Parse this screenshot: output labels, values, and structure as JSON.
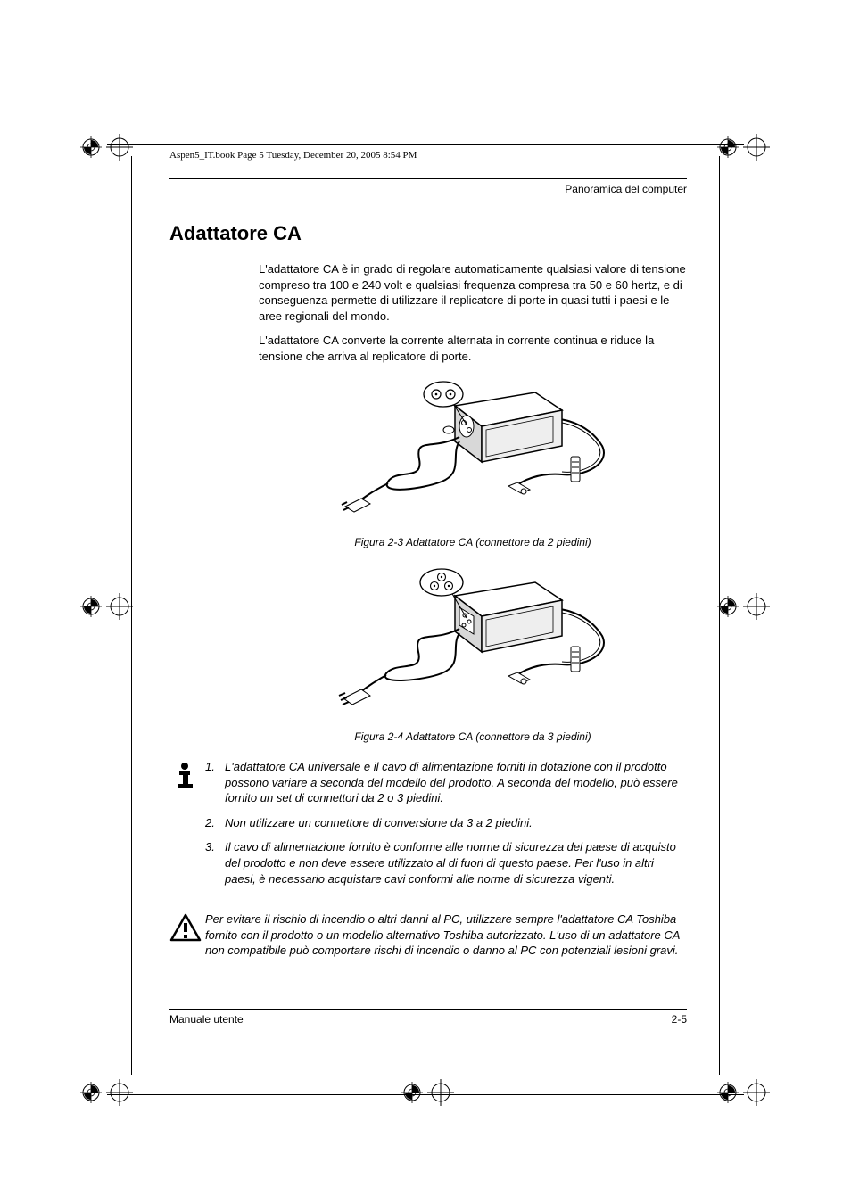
{
  "running_head": "Aspen5_IT.book  Page 5  Tuesday, December 20, 2005  8:54 PM",
  "section_header": "Panoramica del computer",
  "title": "Adattatore CA",
  "paragraphs": [
    "L'adattatore CA è in grado di regolare automaticamente qualsiasi valore di tensione compreso tra 100 e 240 volt e qualsiasi frequenza compresa tra 50 e 60 hertz, e di conseguenza permette di utilizzare il replicatore di porte in quasi tutti i paesi e le aree regionali del mondo.",
    "L'adattatore CA converte la corrente alternata in corrente continua e riduce la tensione che arriva al replicatore di porte."
  ],
  "figure1_caption": "Figura 2-3 Adattatore CA (connettore da 2 piedini)",
  "figure2_caption": "Figura 2-4 Adattatore CA (connettore da 3 piedini)",
  "notes": [
    "L'adattatore CA universale e il cavo di alimentazione forniti in dotazione con il prodotto possono variare a seconda del modello del prodotto. A seconda del modello, può essere fornito un set di connettori da 2 o 3 piedini.",
    "Non utilizzare un connettore di conversione da 3 a 2 piedini.",
    "Il cavo di alimentazione fornito è conforme alle norme di sicurezza del paese di acquisto del prodotto e non deve essere utilizzato al di fuori di questo paese. Per l'uso in altri paesi, è necessario acquistare cavi conformi alle norme di sicurezza vigenti."
  ],
  "warning": "Per evitare il rischio di incendio o altri danni al PC, utilizzare sempre l'adattatore CA Toshiba fornito con il prodotto o un modello alternativo Toshiba autorizzato. L'uso di un adattatore CA non compatibile può comportare rischi di incendio o danno al PC con potenziali lesioni gravi.",
  "footer_left": "Manuale utente",
  "footer_right": "2-5",
  "colors": {
    "text": "#000000",
    "background": "#ffffff",
    "illustration_fill": "#ffffff",
    "illustration_shade": "#d8d8d8",
    "illustration_stroke": "#000000"
  },
  "typography": {
    "body_fontsize_pt": 10,
    "title_fontsize_pt": 16,
    "caption_fontsize_pt": 9,
    "running_fontsize_pt": 8
  }
}
